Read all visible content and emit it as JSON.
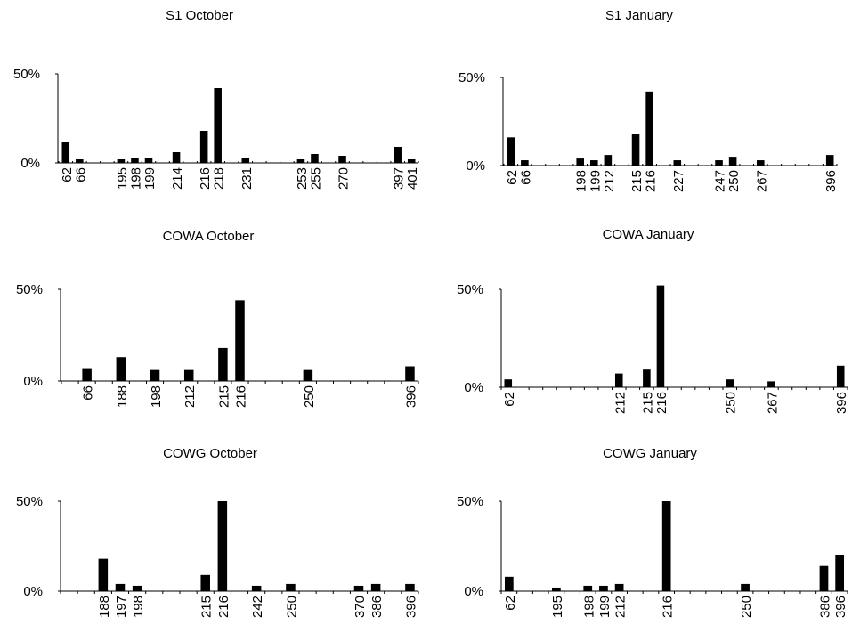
{
  "figure": {
    "bar_color": "#000000",
    "axis_color": "#000000",
    "background": "#ffffff"
  },
  "chart_data": [
    {
      "type": "bar",
      "title": "S1 October",
      "yticks": [
        "0%",
        "50%"
      ],
      "ylim": [
        0,
        50
      ],
      "categories": [
        "62",
        "66",
        "",
        "",
        "195",
        "198",
        "199",
        "",
        "214",
        "",
        "216",
        "218",
        "",
        "231",
        "",
        "",
        "",
        "253",
        "255",
        "",
        "270",
        "",
        "",
        "",
        "397",
        "401"
      ],
      "values": [
        12,
        2,
        0,
        0,
        2,
        3,
        3,
        0,
        6,
        0,
        18,
        42,
        0,
        3,
        0,
        0,
        0,
        2,
        5,
        0,
        4,
        0,
        0,
        0,
        9,
        2
      ]
    },
    {
      "type": "bar",
      "title": "S1 January",
      "yticks": [
        "0%",
        "50%"
      ],
      "ylim": [
        0,
        50
      ],
      "categories": [
        "62",
        "66",
        "",
        "",
        "",
        "198",
        "199",
        "212",
        "",
        "215",
        "216",
        "",
        "227",
        "",
        "",
        "247",
        "250",
        "",
        "267",
        "",
        "",
        "",
        "",
        "396"
      ],
      "values": [
        16,
        3,
        0,
        0,
        0,
        4,
        3,
        6,
        0,
        18,
        42,
        0,
        3,
        0,
        0,
        3,
        5,
        0,
        3,
        0,
        0,
        0,
        0,
        6
      ]
    },
    {
      "type": "bar",
      "title": "COWA  October",
      "yticks": [
        "0%",
        "50%"
      ],
      "ylim": [
        0,
        50
      ],
      "categories": [
        "",
        "66",
        "",
        "188",
        "",
        "198",
        "",
        "212",
        "",
        "215",
        "216",
        "",
        "",
        "",
        "250",
        "",
        "",
        "",
        "",
        "",
        "396"
      ],
      "values": [
        0,
        7,
        0,
        13,
        0,
        6,
        0,
        6,
        0,
        18,
        44,
        0,
        0,
        0,
        6,
        0,
        0,
        0,
        0,
        0,
        8
      ]
    },
    {
      "type": "bar",
      "title": "COWA January",
      "yticks": [
        "0%",
        "50%"
      ],
      "ylim": [
        0,
        50
      ],
      "categories": [
        "62",
        "",
        "",
        "",
        "",
        "",
        "",
        "",
        "212",
        "",
        "215",
        "216",
        "",
        "",
        "",
        "",
        "250",
        "",
        "",
        "267",
        "",
        "",
        "",
        "",
        "396"
      ],
      "values": [
        4,
        0,
        0,
        0,
        0,
        0,
        0,
        0,
        7,
        0,
        9,
        52,
        0,
        0,
        0,
        0,
        4,
        0,
        0,
        3,
        0,
        0,
        0,
        0,
        11
      ]
    },
    {
      "type": "bar",
      "title": "COWG October",
      "yticks": [
        "0%",
        "50%"
      ],
      "ylim": [
        0,
        50
      ],
      "categories": [
        "",
        "",
        "188",
        "197",
        "198",
        "",
        "",
        "",
        "215",
        "216",
        "",
        "242",
        "",
        "250",
        "",
        "",
        "",
        "370",
        "386",
        "",
        "396"
      ],
      "values": [
        0,
        0,
        18,
        4,
        3,
        0,
        0,
        0,
        9,
        50,
        0,
        3,
        0,
        4,
        0,
        0,
        0,
        3,
        4,
        0,
        4
      ]
    },
    {
      "type": "bar",
      "title": "COWG January",
      "yticks": [
        "0%",
        "50%"
      ],
      "ylim": [
        0,
        50
      ],
      "categories": [
        "62",
        "",
        "",
        "195",
        "",
        "198",
        "199",
        "212",
        "",
        "",
        "216",
        "",
        "",
        "",
        "",
        "250",
        "",
        "",
        "",
        "",
        "386",
        "396"
      ],
      "values": [
        8,
        0,
        0,
        2,
        0,
        3,
        3,
        4,
        0,
        0,
        50,
        0,
        0,
        0,
        0,
        4,
        0,
        0,
        0,
        0,
        14,
        20
      ]
    }
  ]
}
